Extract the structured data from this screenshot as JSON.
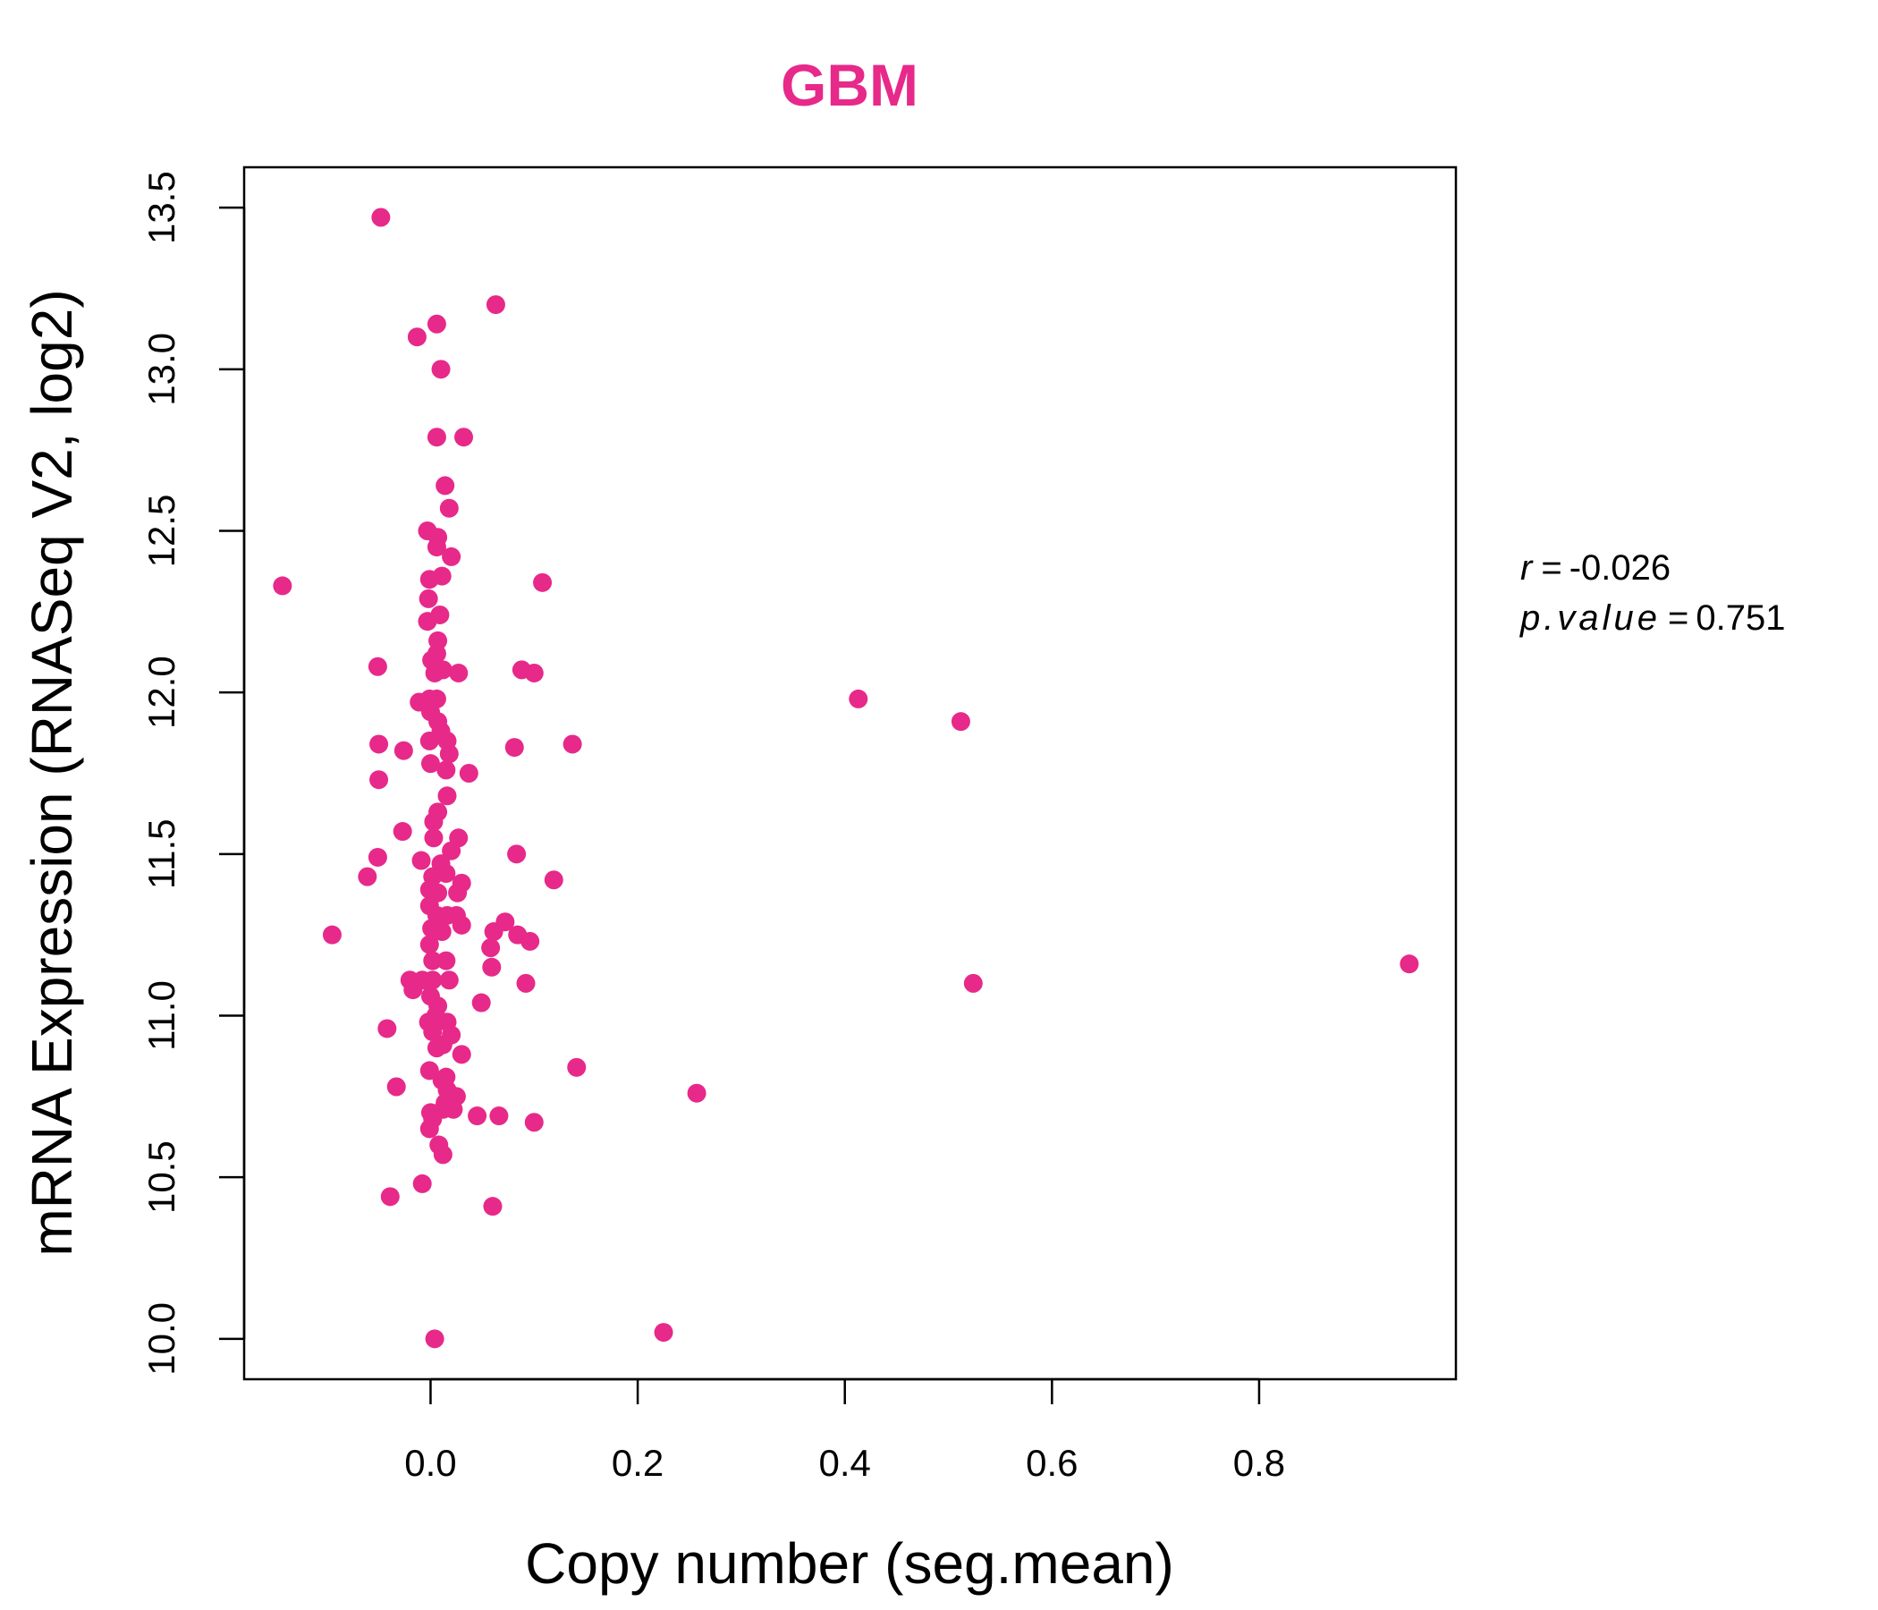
{
  "chart_data": {
    "type": "scatter",
    "title": "GBM",
    "xlabel": "Copy number (seg.mean)",
    "ylabel": "mRNA Expression (RNASeq V2, log2)",
    "xlim": [
      -0.18,
      0.99
    ],
    "ylim": [
      9.875,
      13.625
    ],
    "x_ticks": [
      0.0,
      0.2,
      0.4,
      0.6,
      0.8
    ],
    "x_tick_labels": [
      "0.0",
      "0.2",
      "0.4",
      "0.6",
      "0.8"
    ],
    "y_ticks": [
      10.0,
      10.5,
      11.0,
      11.5,
      12.0,
      12.5,
      13.0,
      13.5
    ],
    "y_tick_labels": [
      "10.0",
      "10.5",
      "11.0",
      "11.5",
      "12.0",
      "12.5",
      "13.0",
      "13.5"
    ],
    "grid": false,
    "annotation": {
      "r_label": "r",
      "r_value": "-0.026",
      "p_label": "p.value",
      "p_value": "0.751",
      "equals": "="
    },
    "points": [
      {
        "x": -0.048,
        "y": 13.47
      },
      {
        "x": 0.063,
        "y": 13.2
      },
      {
        "x": 0.006,
        "y": 13.14
      },
      {
        "x": -0.013,
        "y": 13.1
      },
      {
        "x": 0.01,
        "y": 13.0
      },
      {
        "x": 0.006,
        "y": 12.79
      },
      {
        "x": 0.032,
        "y": 12.79
      },
      {
        "x": 0.014,
        "y": 12.64
      },
      {
        "x": 0.018,
        "y": 12.57
      },
      {
        "x": -0.003,
        "y": 12.5
      },
      {
        "x": 0.007,
        "y": 12.48
      },
      {
        "x": 0.006,
        "y": 12.45
      },
      {
        "x": 0.02,
        "y": 12.42
      },
      {
        "x": -0.001,
        "y": 12.35
      },
      {
        "x": 0.011,
        "y": 12.36
      },
      {
        "x": 0.108,
        "y": 12.34
      },
      {
        "x": -0.143,
        "y": 12.33
      },
      {
        "x": -0.002,
        "y": 12.29
      },
      {
        "x": 0.009,
        "y": 12.24
      },
      {
        "x": -0.003,
        "y": 12.22
      },
      {
        "x": 0.007,
        "y": 12.16
      },
      {
        "x": 0.006,
        "y": 12.12
      },
      {
        "x": 0.001,
        "y": 12.1
      },
      {
        "x": -0.051,
        "y": 12.08
      },
      {
        "x": 0.012,
        "y": 12.07
      },
      {
        "x": 0.004,
        "y": 12.06
      },
      {
        "x": 0.027,
        "y": 12.06
      },
      {
        "x": 0.088,
        "y": 12.07
      },
      {
        "x": 0.1,
        "y": 12.06
      },
      {
        "x": 0.006,
        "y": 11.98
      },
      {
        "x": -0.001,
        "y": 11.98
      },
      {
        "x": -0.011,
        "y": 11.97
      },
      {
        "x": 0.0,
        "y": 11.94
      },
      {
        "x": 0.007,
        "y": 11.91
      },
      {
        "x": 0.01,
        "y": 11.88
      },
      {
        "x": 0.413,
        "y": 11.98
      },
      {
        "x": 0.512,
        "y": 11.91
      },
      {
        "x": -0.05,
        "y": 11.84
      },
      {
        "x": -0.001,
        "y": 11.85
      },
      {
        "x": 0.016,
        "y": 11.85
      },
      {
        "x": 0.137,
        "y": 11.84
      },
      {
        "x": -0.026,
        "y": 11.82
      },
      {
        "x": 0.081,
        "y": 11.83
      },
      {
        "x": 0.018,
        "y": 11.81
      },
      {
        "x": 0.0,
        "y": 11.78
      },
      {
        "x": 0.015,
        "y": 11.76
      },
      {
        "x": 0.037,
        "y": 11.75
      },
      {
        "x": -0.05,
        "y": 11.73
      },
      {
        "x": 0.016,
        "y": 11.68
      },
      {
        "x": 0.007,
        "y": 11.63
      },
      {
        "x": 0.003,
        "y": 11.6
      },
      {
        "x": -0.027,
        "y": 11.57
      },
      {
        "x": 0.003,
        "y": 11.55
      },
      {
        "x": 0.027,
        "y": 11.55
      },
      {
        "x": 0.02,
        "y": 11.51
      },
      {
        "x": 0.083,
        "y": 11.5
      },
      {
        "x": -0.051,
        "y": 11.49
      },
      {
        "x": -0.009,
        "y": 11.48
      },
      {
        "x": 0.01,
        "y": 11.47
      },
      {
        "x": 0.015,
        "y": 11.44
      },
      {
        "x": -0.061,
        "y": 11.43
      },
      {
        "x": 0.002,
        "y": 11.43
      },
      {
        "x": 0.119,
        "y": 11.42
      },
      {
        "x": 0.03,
        "y": 11.41
      },
      {
        "x": -0.001,
        "y": 11.39
      },
      {
        "x": 0.007,
        "y": 11.38
      },
      {
        "x": 0.026,
        "y": 11.38
      },
      {
        "x": -0.001,
        "y": 11.34
      },
      {
        "x": 0.006,
        "y": 11.31
      },
      {
        "x": 0.016,
        "y": 11.31
      },
      {
        "x": 0.025,
        "y": 11.31
      },
      {
        "x": 0.03,
        "y": 11.28
      },
      {
        "x": 0.072,
        "y": 11.29
      },
      {
        "x": 0.061,
        "y": 11.26
      },
      {
        "x": 0.001,
        "y": 11.27
      },
      {
        "x": 0.011,
        "y": 11.26
      },
      {
        "x": -0.095,
        "y": 11.25
      },
      {
        "x": 0.084,
        "y": 11.25
      },
      {
        "x": 0.096,
        "y": 11.23
      },
      {
        "x": -0.001,
        "y": 11.22
      },
      {
        "x": 0.058,
        "y": 11.21
      },
      {
        "x": 0.002,
        "y": 11.17
      },
      {
        "x": 0.015,
        "y": 11.17
      },
      {
        "x": 0.059,
        "y": 11.15
      },
      {
        "x": 0.945,
        "y": 11.16
      },
      {
        "x": -0.02,
        "y": 11.11
      },
      {
        "x": -0.008,
        "y": 11.11
      },
      {
        "x": 0.002,
        "y": 11.11
      },
      {
        "x": 0.018,
        "y": 11.11
      },
      {
        "x": 0.092,
        "y": 11.1
      },
      {
        "x": 0.524,
        "y": 11.1
      },
      {
        "x": -0.017,
        "y": 11.08
      },
      {
        "x": 0.0,
        "y": 11.06
      },
      {
        "x": 0.007,
        "y": 11.03
      },
      {
        "x": 0.049,
        "y": 11.04
      },
      {
        "x": 0.005,
        "y": 11.0
      },
      {
        "x": -0.002,
        "y": 10.98
      },
      {
        "x": 0.016,
        "y": 10.98
      },
      {
        "x": -0.042,
        "y": 10.96
      },
      {
        "x": 0.002,
        "y": 10.95
      },
      {
        "x": 0.02,
        "y": 10.94
      },
      {
        "x": 0.012,
        "y": 10.91
      },
      {
        "x": 0.006,
        "y": 10.9
      },
      {
        "x": 0.03,
        "y": 10.88
      },
      {
        "x": 0.141,
        "y": 10.84
      },
      {
        "x": -0.001,
        "y": 10.83
      },
      {
        "x": 0.015,
        "y": 10.81
      },
      {
        "x": 0.011,
        "y": 10.8
      },
      {
        "x": -0.033,
        "y": 10.78
      },
      {
        "x": 0.016,
        "y": 10.77
      },
      {
        "x": 0.257,
        "y": 10.76
      },
      {
        "x": 0.025,
        "y": 10.75
      },
      {
        "x": 0.014,
        "y": 10.73
      },
      {
        "x": 0.012,
        "y": 10.71
      },
      {
        "x": 0.022,
        "y": 10.71
      },
      {
        "x": 0.0,
        "y": 10.7
      },
      {
        "x": 0.045,
        "y": 10.69
      },
      {
        "x": 0.066,
        "y": 10.69
      },
      {
        "x": 0.002,
        "y": 10.68
      },
      {
        "x": 0.1,
        "y": 10.67
      },
      {
        "x": -0.001,
        "y": 10.65
      },
      {
        "x": 0.008,
        "y": 10.6
      },
      {
        "x": 0.012,
        "y": 10.57
      },
      {
        "x": -0.008,
        "y": 10.48
      },
      {
        "x": -0.039,
        "y": 10.44
      },
      {
        "x": 0.06,
        "y": 10.41
      },
      {
        "x": 0.225,
        "y": 10.02
      },
      {
        "x": 0.004,
        "y": 10.0
      }
    ],
    "colors": {
      "point": "#e7298a",
      "title": "#e7298a",
      "axis": "#000000"
    }
  }
}
